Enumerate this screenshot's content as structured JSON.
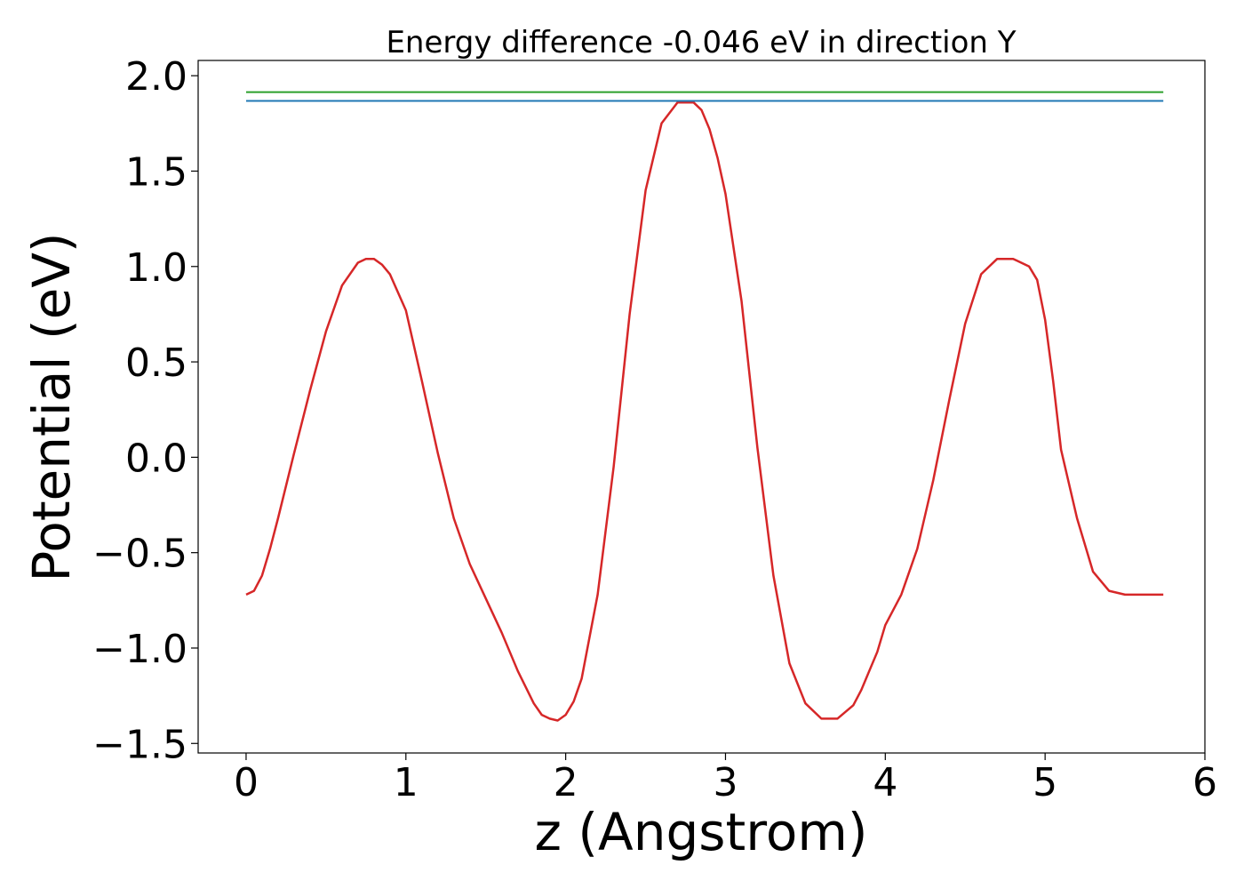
{
  "chart_data": {
    "type": "line",
    "title": "Energy difference -0.046 eV in direction Y",
    "xlabel": "z (Angstrom)",
    "ylabel": "Potential (eV)",
    "xlim": [
      -0.3,
      6.0
    ],
    "ylim": [
      -1.55,
      2.08
    ],
    "xticks": [
      0,
      1,
      2,
      3,
      4,
      5,
      6
    ],
    "xtick_labels": [
      "0",
      "1",
      "2",
      "3",
      "4",
      "5",
      "6"
    ],
    "yticks": [
      -1.5,
      -1.0,
      -0.5,
      0.0,
      0.5,
      1.0,
      1.5,
      2.0
    ],
    "ytick_labels": [
      "−1.5",
      "−1.0",
      "−0.5",
      "0.0",
      "0.5",
      "1.0",
      "1.5",
      "2.0"
    ],
    "grid": false,
    "series": [
      {
        "color": "#d62728",
        "x": [
          0.0,
          0.05,
          0.1,
          0.15,
          0.2,
          0.3,
          0.4,
          0.5,
          0.6,
          0.7,
          0.75,
          0.8,
          0.85,
          0.9,
          1.0,
          1.1,
          1.2,
          1.3,
          1.4,
          1.5,
          1.6,
          1.7,
          1.8,
          1.85,
          1.9,
          1.95,
          2.0,
          2.05,
          2.1,
          2.2,
          2.3,
          2.4,
          2.5,
          2.6,
          2.7,
          2.8,
          2.85,
          2.9,
          2.95,
          3.0,
          3.1,
          3.2,
          3.3,
          3.4,
          3.5,
          3.6,
          3.7,
          3.8,
          3.85,
          3.9,
          3.95,
          4.0,
          4.1,
          4.2,
          4.3,
          4.4,
          4.5,
          4.6,
          4.7,
          4.8,
          4.9,
          4.95,
          5.0,
          5.05,
          5.1,
          5.2,
          5.3,
          5.4,
          5.5,
          5.6,
          5.7,
          5.74
        ],
        "y": [
          -0.72,
          -0.7,
          -0.62,
          -0.48,
          -0.32,
          0.02,
          0.35,
          0.66,
          0.9,
          1.02,
          1.04,
          1.04,
          1.01,
          0.96,
          0.77,
          0.4,
          0.02,
          -0.32,
          -0.56,
          -0.74,
          -0.92,
          -1.12,
          -1.29,
          -1.35,
          -1.37,
          -1.38,
          -1.35,
          -1.28,
          -1.16,
          -0.72,
          -0.05,
          0.75,
          1.4,
          1.75,
          1.86,
          1.86,
          1.82,
          1.72,
          1.57,
          1.38,
          0.82,
          0.05,
          -0.62,
          -1.08,
          -1.29,
          -1.37,
          -1.37,
          -1.3,
          -1.22,
          -1.12,
          -1.02,
          -0.88,
          -0.72,
          -0.48,
          -0.12,
          0.3,
          0.7,
          0.96,
          1.04,
          1.04,
          1.0,
          0.93,
          0.72,
          0.4,
          0.04,
          -0.32,
          -0.6,
          -0.7,
          -0.72,
          -0.72,
          -0.72,
          -0.72
        ]
      },
      {
        "color": "#1f77b4",
        "x": [
          0.0,
          5.74
        ],
        "y": [
          1.868,
          1.868
        ]
      },
      {
        "color": "#2ca02c",
        "x": [
          0.0,
          5.74
        ],
        "y": [
          1.914,
          1.914
        ]
      }
    ]
  }
}
